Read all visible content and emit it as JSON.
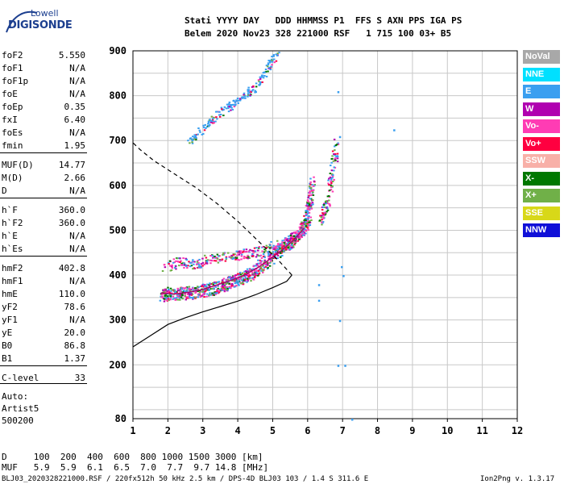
{
  "logo": {
    "line1": "Lowell",
    "line2": "DIGISONDE"
  },
  "header": {
    "line1": "Stati YYYY DAY   DDD HHMMSS P1  FFS S AXN PPS IGA PS",
    "line2": "Belem 2020 Nov23 328 221000 RSF   1 715 100 03+ B5"
  },
  "params": [
    {
      "key": "foF2",
      "value": "5.550"
    },
    {
      "key": "foF1",
      "value": "N/A"
    },
    {
      "key": "foF1p",
      "value": "N/A"
    },
    {
      "key": "foE",
      "value": "N/A"
    },
    {
      "key": "foEp",
      "value": "0.35"
    },
    {
      "key": "fxI",
      "value": "6.40"
    },
    {
      "key": "foEs",
      "value": "N/A"
    },
    {
      "key": "fmin",
      "value": "1.95"
    },
    {
      "key": "MUF(D)",
      "value": "14.77"
    },
    {
      "key": "M(D)",
      "value": "2.66"
    },
    {
      "key": "D",
      "value": "N/A"
    },
    {
      "key": "h`F",
      "value": "360.0"
    },
    {
      "key": "h`F2",
      "value": "360.0"
    },
    {
      "key": "h`E",
      "value": "N/A"
    },
    {
      "key": "h`Es",
      "value": "N/A"
    },
    {
      "key": "hmF2",
      "value": "402.8"
    },
    {
      "key": "hmF1",
      "value": "N/A"
    },
    {
      "key": "hmE",
      "value": "110.0"
    },
    {
      "key": "yF2",
      "value": "78.6"
    },
    {
      "key": "yF1",
      "value": "N/A"
    },
    {
      "key": "yE",
      "value": "20.0"
    },
    {
      "key": "B0",
      "value": "86.8"
    },
    {
      "key": "B1",
      "value": "1.37"
    },
    {
      "key": "C-level",
      "value": "33"
    }
  ],
  "auto": {
    "line1": "Auto:",
    "line2": "Artist5",
    "line3": "500200"
  },
  "legend": [
    {
      "label": "NoVal",
      "color": "#a8a8a8"
    },
    {
      "label": "NNE",
      "color": "#00e0ff"
    },
    {
      "label": "E",
      "color": "#3a9ff0"
    },
    {
      "label": "W",
      "color": "#b000b0"
    },
    {
      "label": "Vo-",
      "color": "#ff3cb4"
    },
    {
      "label": "Vo+",
      "color": "#ff0040"
    },
    {
      "label": "SSW",
      "color": "#f8b0a8"
    },
    {
      "label": "X-",
      "color": "#007800"
    },
    {
      "label": "X+",
      "color": "#70b048"
    },
    {
      "label": "SSE",
      "color": "#d8d818"
    },
    {
      "label": "NNW",
      "color": "#1010d8"
    }
  ],
  "bottom_table": {
    "row1": "D     100  200  400  600  800 1000 1500 3000 [km]",
    "row2": "MUF   5.9  5.9  6.1  6.5  7.0  7.7  9.7 14.8 [MHz]"
  },
  "footer": {
    "left": "BLJ03_2020328221000.RSF / 220fx512h 50 kHz 2.5 km / DPS-4D BLJ03 103 / 1.4 S 311.6 E",
    "right": "Ion2Png v. 1.3.17"
  },
  "chart_data": {
    "type": "scatter",
    "x_ticks": [
      "1",
      "2",
      "3",
      "4",
      "5",
      "6",
      "7",
      "8",
      "9",
      "10",
      "11",
      "12"
    ],
    "y_ticks": [
      "80",
      "200",
      "300",
      "400",
      "500",
      "600",
      "700",
      "800",
      "900"
    ],
    "xlim": [
      1,
      12
    ],
    "ylim": [
      80,
      900
    ],
    "xlabel": "",
    "ylabel": "",
    "grid": true,
    "traces": [
      {
        "name": "trace_f2",
        "points": [
          [
            1.8,
            355
          ],
          [
            2.0,
            360
          ],
          [
            2.3,
            360
          ],
          [
            2.6,
            362
          ],
          [
            2.9,
            365
          ],
          [
            3.2,
            370
          ],
          [
            3.5,
            376
          ],
          [
            3.8,
            385
          ],
          [
            4.1,
            395
          ],
          [
            4.4,
            408
          ],
          [
            4.7,
            425
          ],
          [
            5.0,
            445
          ],
          [
            5.2,
            458
          ],
          [
            5.4,
            472
          ],
          [
            5.6,
            485
          ],
          [
            5.8,
            500
          ],
          [
            5.95,
            520
          ],
          [
            6.05,
            560
          ],
          [
            6.1,
            610
          ]
        ]
      },
      {
        "name": "trace_f2_ext",
        "points": [
          [
            6.35,
            520
          ],
          [
            6.45,
            540
          ],
          [
            6.55,
            570
          ],
          [
            6.65,
            610
          ],
          [
            6.75,
            660
          ],
          [
            6.8,
            700
          ]
        ]
      },
      {
        "name": "trace_2hop",
        "points": [
          [
            2.6,
            700
          ],
          [
            2.9,
            720
          ],
          [
            3.2,
            745
          ],
          [
            3.5,
            765
          ],
          [
            3.8,
            780
          ],
          [
            4.1,
            795
          ],
          [
            4.4,
            815
          ],
          [
            4.7,
            840
          ],
          [
            4.9,
            870
          ],
          [
            5.1,
            900
          ]
        ]
      },
      {
        "name": "trace_spread",
        "points": [
          [
            1.9,
            420
          ],
          [
            2.3,
            430
          ],
          [
            2.7,
            425
          ],
          [
            3.1,
            435
          ],
          [
            3.5,
            440
          ],
          [
            3.9,
            445
          ],
          [
            4.3,
            450
          ],
          [
            4.7,
            455
          ],
          [
            5.1,
            470
          ]
        ]
      }
    ],
    "profile_solid": [
      [
        1.0,
        240
      ],
      [
        1.5,
        265
      ],
      [
        2.0,
        290
      ],
      [
        2.5,
        305
      ],
      [
        3.0,
        318
      ],
      [
        3.5,
        330
      ],
      [
        4.0,
        342
      ],
      [
        4.5,
        356
      ],
      [
        5.0,
        372
      ],
      [
        5.4,
        386
      ],
      [
        5.55,
        400
      ]
    ],
    "profile_dashed": [
      [
        5.55,
        400
      ],
      [
        5.2,
        430
      ],
      [
        4.6,
        475
      ],
      [
        4.0,
        520
      ],
      [
        3.4,
        560
      ],
      [
        2.8,
        595
      ],
      [
        2.2,
        625
      ],
      [
        1.6,
        655
      ],
      [
        1.2,
        680
      ],
      [
        1.0,
        695
      ]
    ],
    "trace_line": [
      [
        1.8,
        360
      ],
      [
        2.2,
        358
      ],
      [
        2.6,
        362
      ],
      [
        3.0,
        368
      ],
      [
        3.4,
        378
      ],
      [
        3.8,
        388
      ],
      [
        4.2,
        400
      ],
      [
        4.6,
        418
      ],
      [
        5.0,
        440
      ],
      [
        5.3,
        458
      ],
      [
        5.6,
        478
      ],
      [
        5.9,
        505
      ]
    ]
  }
}
